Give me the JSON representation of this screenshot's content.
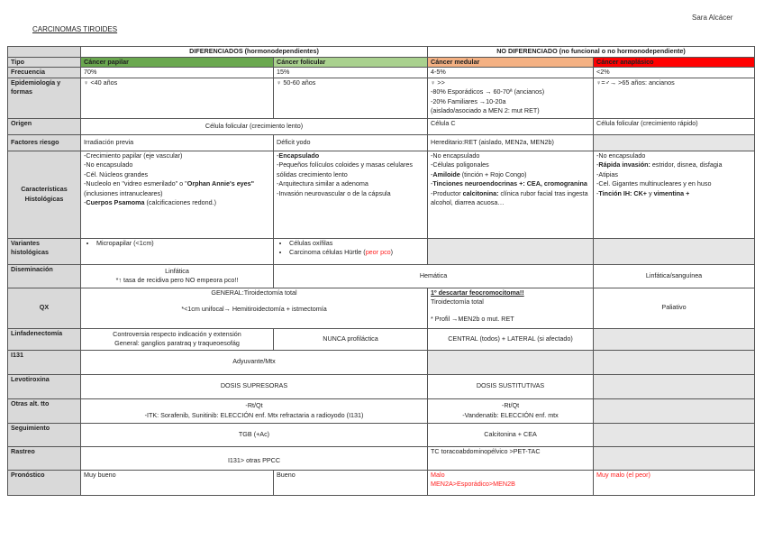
{
  "author": "Sara Alcácer",
  "title": "CARCINOMAS TIROIDES",
  "groups": {
    "diferenciados": "DIFERENCIADOS (hormonodependientes)",
    "no_diferenciado": "NO DIFERENCIADO (no funcional o no hormonodependiente)"
  },
  "colors": {
    "papilar": "#6aa84f",
    "folicular": "#a9d18e",
    "medular": "#f4b183",
    "anaplasico": "#ff0000",
    "label_bg": "#d9d9d9",
    "na_bg": "#e6e6e6",
    "warning_text": "#ff2020"
  },
  "rows": {
    "tipo": {
      "label": "Tipo",
      "papilar": "Cáncer papilar",
      "folicular": "Cáncer folicular",
      "medular": "Cáncer medular",
      "anaplasico": "Cáncer anaplásico"
    },
    "frecuencia": {
      "label": "Frecuencia",
      "papilar": "70%",
      "folicular": "15%",
      "medular": "4-5%",
      "anaplasico": "<2%"
    },
    "epidemiologia": {
      "label": "Epidemiología y formas",
      "papilar": [
        [
          [
            "♀ <40 años",
            ""
          ]
        ]
      ],
      "folicular": [
        [
          [
            "♀ 50-60 años",
            ""
          ]
        ]
      ],
      "medular": [
        [
          [
            "♀ >>",
            ""
          ]
        ],
        [
          [
            "-80% Esporádicos → 60-70ª (ancianos)",
            ""
          ]
        ],
        [
          [
            "-20% Familiares →10-20a",
            ""
          ]
        ],
        [
          [
            "(aislado/asociado a MEN 2: mut RET)",
            ""
          ]
        ]
      ],
      "anaplasico": [
        [
          [
            "♀=♂→ >65 años: ancianos",
            ""
          ]
        ]
      ]
    },
    "origen": {
      "label": "Origen",
      "dif": "Célula folicular (crecimiento lento)",
      "medular": "Célula C",
      "anaplasico": "Célula folicular (crecimiento rápido)"
    },
    "factores": {
      "label": "Factores riesgo",
      "papilar": "Irradiación previa",
      "folicular": "Déficit yodo",
      "medular": "Hereditario:RET (aislado, MEN2a, MEN2b)"
    },
    "caracteristicas": {
      "label": "Características Histológicas",
      "papilar": [
        [
          [
            "-Crecimiento papilar (eje vascular)",
            ""
          ]
        ],
        [
          [
            "-No encapsulado",
            ""
          ]
        ],
        [
          [
            "-Cél. Núcleos grandes",
            ""
          ]
        ],
        [
          [
            "-Nucleolo en \"vidreo esmerilado\" o \"",
            ""
          ],
          [
            "Orphan Annie's eyes\"",
            "b"
          ],
          [
            " (inclusiones intranucleares)",
            ""
          ]
        ],
        [
          [
            "-",
            ""
          ],
          [
            "Cuerpos Psamoma",
            "b"
          ],
          [
            " (calcificaciones redond.)",
            ""
          ]
        ]
      ],
      "folicular": [
        [
          [
            "-",
            ""
          ],
          [
            "Encapsulado",
            "b"
          ]
        ],
        [
          [
            "-Pequeños folículos coloides y masas celulares sólidas crecimiento lento",
            ""
          ]
        ],
        [
          [
            "-Arquitectura similar a adenoma",
            ""
          ]
        ],
        [
          [
            "-Invasión neurovascular o de la cápsula",
            ""
          ]
        ]
      ],
      "medular": [
        [
          [
            "-No encapsulado",
            ""
          ]
        ],
        [
          [
            "-Células poligonales",
            ""
          ]
        ],
        [
          [
            "-",
            ""
          ],
          [
            "Amiloide",
            "b"
          ],
          [
            " (tinción + Rojo Congo)",
            ""
          ]
        ],
        [
          [
            "-",
            ""
          ],
          [
            "Tinciones neuroendocrinas +: CEA, cromogranina",
            "b"
          ]
        ],
        [
          [
            "-Productor ",
            ""
          ],
          [
            "calcitonina:",
            "b"
          ],
          [
            " clínica rubor facial tras ingesta alcohol, diarrea acuosa…",
            ""
          ]
        ]
      ],
      "anaplasico": [
        [
          [
            "-No encapsulado",
            ""
          ]
        ],
        [
          [
            "-",
            ""
          ],
          [
            "Rápida invasión:",
            "b"
          ],
          [
            " estridor, disnea, disfagia",
            ""
          ]
        ],
        [
          [
            "-Atipias",
            ""
          ]
        ],
        [
          [
            "-Cel. Gigantes multinucleares y en huso",
            ""
          ]
        ],
        [
          [
            "-",
            ""
          ],
          [
            "Tinción IH: CK+",
            "b"
          ],
          [
            " y ",
            ""
          ],
          [
            "vimentina +",
            "b"
          ]
        ]
      ]
    },
    "variantes": {
      "label": "Variantes histológicas",
      "papilar": [
        "Micropapilar (<1cm)"
      ],
      "folicular_1": "Células oxífilas",
      "folicular_2": "Carcinoma células Hürtle (",
      "folicular_2_red": "peor pco",
      "folicular_2_end": ")"
    },
    "diseminacion": {
      "label": "Diseminación",
      "papilar_1": "Linfática",
      "papilar_2": "*↑ tasa de recidiva pero NO empeora pco!!",
      "fol_med": "Hemática",
      "anaplasico": "Linfática/sanguínea"
    },
    "qx": {
      "label": "QX",
      "dif_1": "GENERAL:Tiroidectomía total",
      "dif_2": "*<1cm unifocal→ Hemitiroidectomía + istmectomía",
      "medular_1": "1º descartar feocromocitoma!!",
      "medular_2": "Tiroidectomía total",
      "medular_3": "* Profil →MEN2b o mut. RET",
      "anaplasico": "Paliativo"
    },
    "linfadenectomia": {
      "label": "Linfadenectomía",
      "papilar_1": "Controversia respecto indicación y extensión",
      "papilar_2": "General: ganglios paratraq y traqueoesofág",
      "folicular": "NUNCA profiláctica",
      "medular": "CENTRAL (todos) + LATERAL (si afectado)"
    },
    "i131": {
      "label": "I131",
      "dif": "Adyuvante/Mtx"
    },
    "levotiroxina": {
      "label": "Levotiroxina",
      "dif": "DOSIS SUPRESORAS",
      "medular": "DOSIS SUSTITUTIVAS"
    },
    "otras": {
      "label": "Otras alt. tto",
      "dif_1": "-Rt/Qt",
      "dif_2": "-ITK: Sorafenib, Sunitinib: ELECCIÓN enf. Mtx refractaria a radioyodo (I131)",
      "medular_1": "-Rt/Qt",
      "medular_2": "-Vandenatib: ELECCIÓN enf. mtx"
    },
    "seguimiento": {
      "label": "Seguimiento",
      "dif": "TGB (+Ac)",
      "medular": "Calcitonina + CEA"
    },
    "rastreo": {
      "label": "Rastreo",
      "dif": "I131> otras PPCC",
      "medular": "TC toracoabdominopélvico >PET-TAC"
    },
    "pronostico": {
      "label": "Pronóstico",
      "papilar": "Muy bueno",
      "folicular": "Bueno",
      "medular_1": "Malo",
      "medular_2": "MEN2A>Esporádico>MEN2B",
      "anaplasico": "Muy malo (el peor)"
    }
  }
}
